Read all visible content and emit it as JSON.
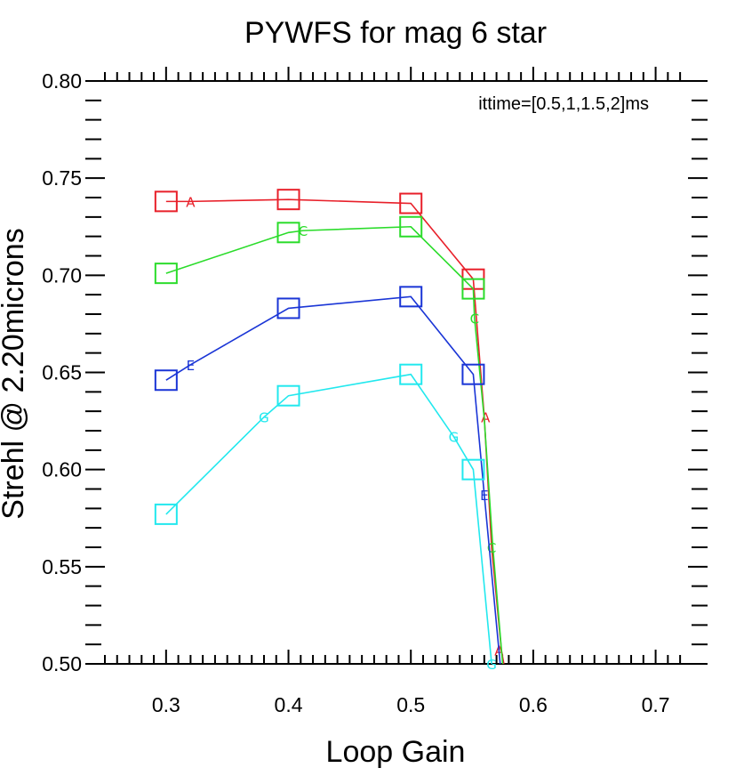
{
  "chart_data": {
    "type": "line",
    "title": "PYWFS for mag 6 star",
    "xlabel": "Loop Gain",
    "ylabel": "Strehl @ 2.20microns",
    "annotation": "ittime=[0.5,1,1.5,2]ms",
    "xlim": [
      0.25,
      0.725
    ],
    "ylim": [
      0.5,
      0.8
    ],
    "x_ticks": [
      "0.3",
      "0.4",
      "0.5",
      "0.6",
      "0.7"
    ],
    "y_ticks": [
      "0.50",
      "0.55",
      "0.60",
      "0.65",
      "0.70",
      "0.75",
      "0.80"
    ],
    "grid": false,
    "series": [
      {
        "color": "#e8202a",
        "points": [
          [
            0.3,
            0.738
          ],
          [
            0.32,
            0.738
          ],
          [
            0.4,
            0.739
          ],
          [
            0.5,
            0.737
          ],
          [
            0.551,
            0.698
          ],
          [
            0.56,
            0.627
          ],
          [
            0.566,
            0.56
          ],
          [
            0.574,
            0.507
          ],
          [
            0.576,
            0.5
          ]
        ],
        "squares_at": [
          0.3,
          0.4,
          0.5,
          0.55
        ],
        "letter_markers": [
          {
            "x": 0.32,
            "y": 0.738,
            "text": "A"
          },
          {
            "x": 0.561,
            "y": 0.627,
            "text": "A"
          },
          {
            "x": 0.572,
            "y": 0.507,
            "text": "A"
          }
        ]
      },
      {
        "color": "#2bdc2b",
        "points": [
          [
            0.3,
            0.701
          ],
          [
            0.4,
            0.722
          ],
          [
            0.412,
            0.723
          ],
          [
            0.5,
            0.725
          ],
          [
            0.551,
            0.693
          ],
          [
            0.552,
            0.678
          ],
          [
            0.56,
            0.626
          ],
          [
            0.567,
            0.56
          ],
          [
            0.575,
            0.5
          ]
        ],
        "squares_at": [
          0.3,
          0.4,
          0.5,
          0.55
        ],
        "letter_markers": [
          {
            "x": 0.412,
            "y": 0.723,
            "text": "C"
          },
          {
            "x": 0.552,
            "y": 0.678,
            "text": "C"
          },
          {
            "x": 0.566,
            "y": 0.56,
            "text": "C"
          }
        ]
      },
      {
        "color": "#1a35d6",
        "points": [
          [
            0.3,
            0.646
          ],
          [
            0.32,
            0.654
          ],
          [
            0.4,
            0.683
          ],
          [
            0.5,
            0.689
          ],
          [
            0.551,
            0.649
          ],
          [
            0.56,
            0.587
          ],
          [
            0.573,
            0.5
          ]
        ],
        "squares_at": [
          0.3,
          0.4,
          0.5,
          0.55
        ],
        "letter_markers": [
          {
            "x": 0.32,
            "y": 0.654,
            "text": "E"
          },
          {
            "x": 0.56,
            "y": 0.587,
            "text": "E"
          }
        ]
      },
      {
        "color": "#22e8ee",
        "points": [
          [
            0.3,
            0.577
          ],
          [
            0.38,
            0.627
          ],
          [
            0.4,
            0.638
          ],
          [
            0.5,
            0.649
          ],
          [
            0.535,
            0.617
          ],
          [
            0.551,
            0.6
          ],
          [
            0.566,
            0.5
          ]
        ],
        "squares_at": [
          0.3,
          0.4,
          0.5,
          0.55
        ],
        "letter_markers": [
          {
            "x": 0.38,
            "y": 0.627,
            "text": "G"
          },
          {
            "x": 0.535,
            "y": 0.617,
            "text": "G"
          },
          {
            "x": 0.566,
            "y": 0.5,
            "text": "G"
          }
        ]
      }
    ]
  }
}
